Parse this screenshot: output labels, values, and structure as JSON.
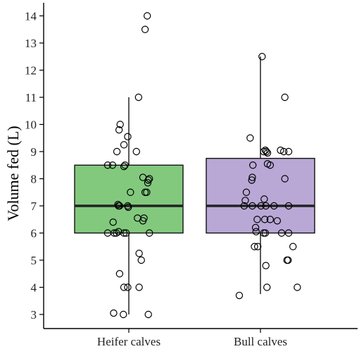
{
  "chart_data": {
    "type": "box",
    "xlabel": "",
    "ylabel": "Volume fed (L)",
    "ylim": [
      2.6,
      14.6
    ],
    "yticks": [
      3,
      4,
      5,
      6,
      7,
      8,
      9,
      10,
      11,
      12,
      13,
      14
    ],
    "grid": false,
    "categories": [
      "Heifer calves",
      "Bull calves"
    ],
    "series": [
      {
        "category": "Heifer calves",
        "color": "#82c97e",
        "stats": {
          "min": 3,
          "q1": 6,
          "median": 7,
          "q3": 8.5,
          "max": 11
        },
        "points": [
          {
            "jitter": 0.34,
            "y": 14.0
          },
          {
            "jitter": 0.3,
            "y": 13.5
          },
          {
            "jitter": 0.18,
            "y": 11.0
          },
          {
            "jitter": -0.16,
            "y": 10.0
          },
          {
            "jitter": -0.18,
            "y": 9.8
          },
          {
            "jitter": -0.02,
            "y": 9.55
          },
          {
            "jitter": -0.09,
            "y": 9.25
          },
          {
            "jitter": -0.22,
            "y": 9.0
          },
          {
            "jitter": 0.14,
            "y": 9.0
          },
          {
            "jitter": -0.39,
            "y": 8.5
          },
          {
            "jitter": -0.3,
            "y": 8.5
          },
          {
            "jitter": -0.09,
            "y": 8.45
          },
          {
            "jitter": -0.07,
            "y": 8.5
          },
          {
            "jitter": 0.26,
            "y": 8.05
          },
          {
            "jitter": 0.38,
            "y": 8.0
          },
          {
            "jitter": 0.36,
            "y": 7.95
          },
          {
            "jitter": 0.35,
            "y": 7.85
          },
          {
            "jitter": 0.03,
            "y": 7.5
          },
          {
            "jitter": 0.3,
            "y": 7.5
          },
          {
            "jitter": 0.33,
            "y": 7.5
          },
          {
            "jitter": -0.2,
            "y": 7.05
          },
          {
            "jitter": -0.19,
            "y": 7.0
          },
          {
            "jitter": -0.17,
            "y": 7.0
          },
          {
            "jitter": -0.02,
            "y": 7.0
          },
          {
            "jitter": -0.01,
            "y": 6.95
          },
          {
            "jitter": 0.16,
            "y": 6.55
          },
          {
            "jitter": 0.28,
            "y": 6.55
          },
          {
            "jitter": 0.26,
            "y": 6.45
          },
          {
            "jitter": -0.29,
            "y": 6.4
          },
          {
            "jitter": -0.39,
            "y": 6.0
          },
          {
            "jitter": -0.27,
            "y": 6.0
          },
          {
            "jitter": -0.23,
            "y": 6.0
          },
          {
            "jitter": -0.19,
            "y": 6.05
          },
          {
            "jitter": -0.09,
            "y": 6.0
          },
          {
            "jitter": -0.05,
            "y": 6.0
          },
          {
            "jitter": 0.38,
            "y": 6.0
          },
          {
            "jitter": 0.19,
            "y": 5.25
          },
          {
            "jitter": 0.23,
            "y": 5.0
          },
          {
            "jitter": -0.17,
            "y": 4.5
          },
          {
            "jitter": -0.09,
            "y": 4.0
          },
          {
            "jitter": -0.02,
            "y": 4.0
          },
          {
            "jitter": 0.19,
            "y": 4.0
          },
          {
            "jitter": -0.28,
            "y": 3.05
          },
          {
            "jitter": -0.1,
            "y": 3.0
          },
          {
            "jitter": 0.36,
            "y": 3.0
          }
        ]
      },
      {
        "category": "Bull calves",
        "color": "#b9a8d6",
        "stats": {
          "min": 3.75,
          "q1": 6,
          "median": 7,
          "q3": 8.75,
          "max": 12.5
        },
        "points": [
          {
            "jitter": 0.03,
            "y": 12.5
          },
          {
            "jitter": 0.45,
            "y": 11.0
          },
          {
            "jitter": -0.19,
            "y": 9.5
          },
          {
            "jitter": 0.06,
            "y": 9.0
          },
          {
            "jitter": 0.09,
            "y": 9.05
          },
          {
            "jitter": 0.11,
            "y": 9.0
          },
          {
            "jitter": 0.13,
            "y": 8.95
          },
          {
            "jitter": 0.37,
            "y": 9.05
          },
          {
            "jitter": 0.43,
            "y": 9.0
          },
          {
            "jitter": 0.52,
            "y": 9.0
          },
          {
            "jitter": -0.14,
            "y": 8.5
          },
          {
            "jitter": 0.18,
            "y": 8.5
          },
          {
            "jitter": 0.13,
            "y": 8.55
          },
          {
            "jitter": -0.15,
            "y": 8.05
          },
          {
            "jitter": -0.16,
            "y": 7.95
          },
          {
            "jitter": 0.45,
            "y": 8.0
          },
          {
            "jitter": -0.26,
            "y": 7.5
          },
          {
            "jitter": -0.28,
            "y": 7.2
          },
          {
            "jitter": 0.07,
            "y": 7.25
          },
          {
            "jitter": -0.3,
            "y": 7.0
          },
          {
            "jitter": -0.15,
            "y": 7.0
          },
          {
            "jitter": 0.01,
            "y": 7.0
          },
          {
            "jitter": 0.1,
            "y": 7.0
          },
          {
            "jitter": 0.25,
            "y": 7.0
          },
          {
            "jitter": 0.52,
            "y": 7.0
          },
          {
            "jitter": -0.06,
            "y": 6.5
          },
          {
            "jitter": 0.08,
            "y": 6.5
          },
          {
            "jitter": -0.09,
            "y": 6.2
          },
          {
            "jitter": 0.18,
            "y": 6.5
          },
          {
            "jitter": 0.31,
            "y": 6.45
          },
          {
            "jitter": -0.08,
            "y": 6.05
          },
          {
            "jitter": 0.06,
            "y": 6.0
          },
          {
            "jitter": 0.09,
            "y": 6.0
          },
          {
            "jitter": 0.39,
            "y": 6.0
          },
          {
            "jitter": 0.52,
            "y": 6.0
          },
          {
            "jitter": -0.11,
            "y": 5.5
          },
          {
            "jitter": -0.05,
            "y": 5.5
          },
          {
            "jitter": 0.6,
            "y": 5.5
          },
          {
            "jitter": 0.1,
            "y": 4.8
          },
          {
            "jitter": 0.49,
            "y": 5.0
          },
          {
            "jitter": 0.51,
            "y": 5.0
          },
          {
            "jitter": 0.12,
            "y": 4.0
          },
          {
            "jitter": 0.68,
            "y": 4.0
          },
          {
            "jitter": -0.39,
            "y": 3.7
          }
        ]
      }
    ]
  }
}
